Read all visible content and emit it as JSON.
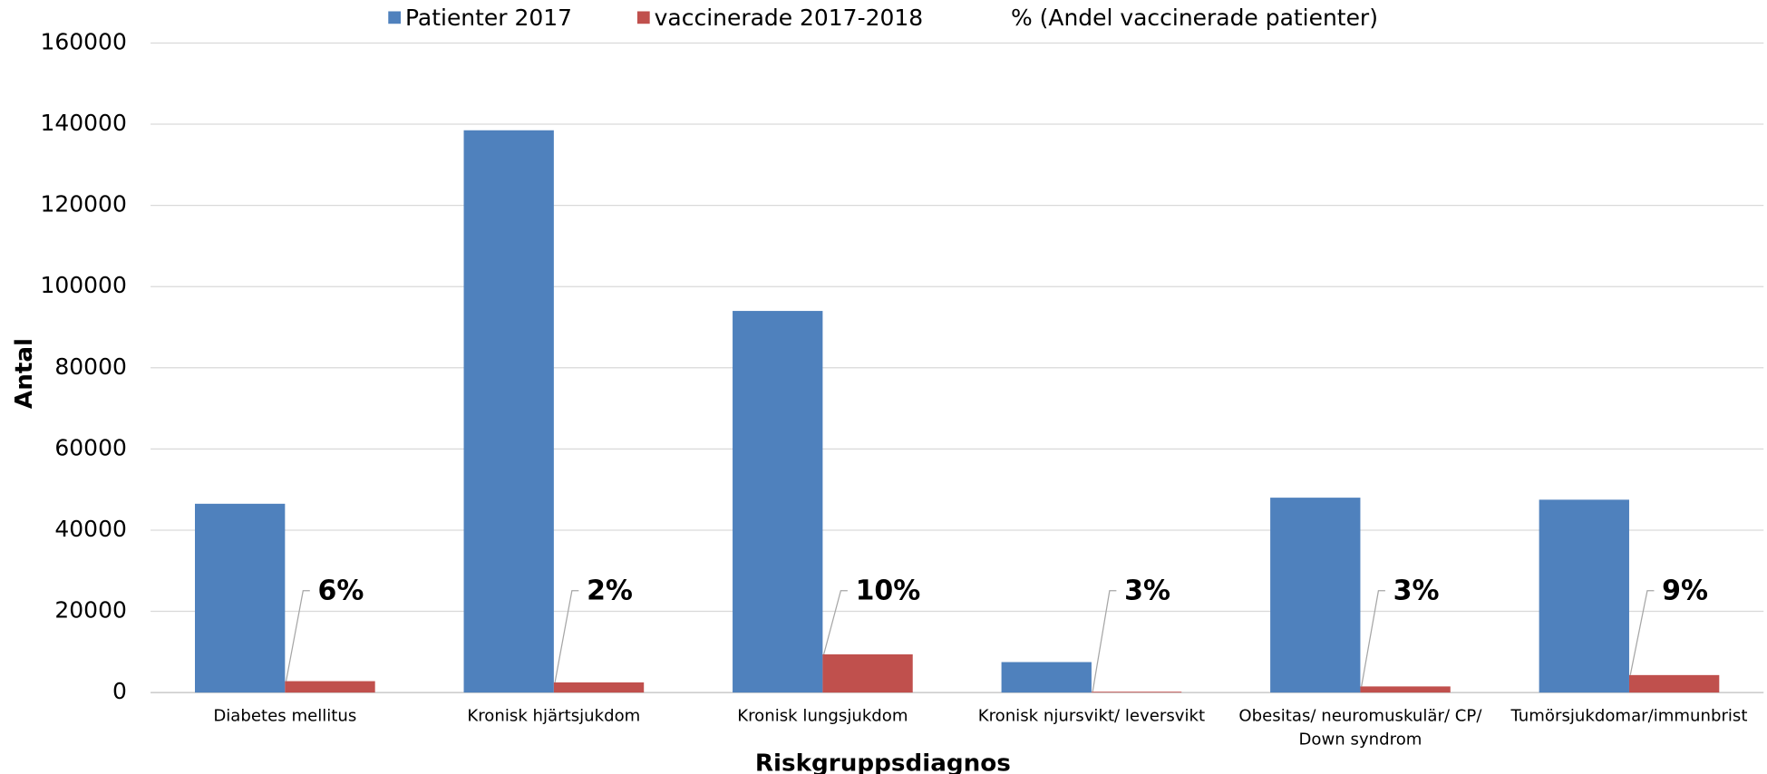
{
  "chart_data": {
    "type": "bar",
    "x_label": "Riskgruppsdiagnos",
    "y_label": "Antal",
    "categories": [
      "Diabetes mellitus",
      "Kronisk hjärtsjukdom",
      "Kronisk lungsjukdom",
      "Kronisk njursvikt/ leversvikt",
      "Obesitas/ neuromuskulär/ CP/ Down syndrom",
      "Tumörsjukdomar/immunbrist"
    ],
    "series": [
      {
        "name": "Patienter 2017",
        "color": "#4f81bd",
        "values": [
          46500,
          138500,
          94000,
          7500,
          48000,
          47500
        ]
      },
      {
        "name": "vaccinerade 2017-2018",
        "color": "#c0504d",
        "values": [
          2800,
          2500,
          9400,
          200,
          1500,
          4300
        ]
      },
      {
        "name": "% (Andel vaccinerade patienter)",
        "values": [
          6,
          2,
          10,
          3,
          3,
          9
        ],
        "value_labels": [
          "6%",
          "2%",
          "10%",
          "3%",
          "3%",
          "9%"
        ]
      }
    ],
    "ylim": [
      0,
      160000
    ],
    "yticks": [
      0,
      20000,
      40000,
      60000,
      80000,
      100000,
      120000,
      140000,
      160000
    ],
    "grid": true,
    "legend": "top"
  }
}
